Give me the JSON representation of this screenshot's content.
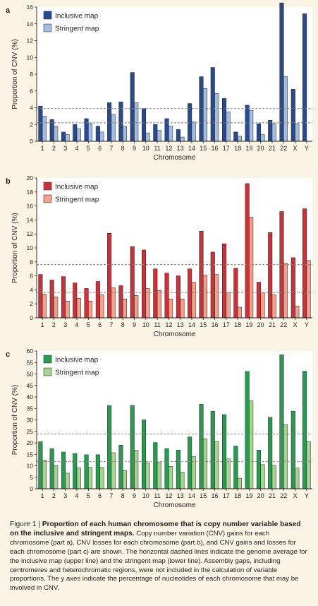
{
  "chart_data": [
    {
      "type": "bar",
      "panel_label": "a",
      "ylabel": "Proportion of CNV (%)",
      "xlabel": "Chromosome",
      "ylim": [
        0,
        16
      ],
      "yticks": [
        0,
        2,
        4,
        6,
        8,
        10,
        12,
        14,
        16
      ],
      "categories": [
        "1",
        "2",
        "3",
        "4",
        "5",
        "6",
        "7",
        "8",
        "9",
        "10",
        "11",
        "12",
        "13",
        "14",
        "15",
        "16",
        "17",
        "18",
        "19",
        "20",
        "21",
        "22",
        "X",
        "Y"
      ],
      "series": [
        {
          "name": "Inclusive map",
          "color": "#2a4a8e",
          "values": [
            4.2,
            2.6,
            1.1,
            2.0,
            2.7,
            1.8,
            4.6,
            4.7,
            8.2,
            3.9,
            2.0,
            2.7,
            1.4,
            4.5,
            7.7,
            8.8,
            5.1,
            1.1,
            4.3,
            2.1,
            2.5,
            16.5,
            6.2,
            15.2
          ]
        },
        {
          "name": "Stringent map",
          "color": "#a3bde0",
          "values": [
            3.0,
            1.8,
            0.8,
            1.5,
            2.1,
            1.1,
            3.2,
            1.8,
            4.6,
            1.0,
            1.3,
            1.8,
            0.5,
            2.3,
            6.3,
            5.7,
            3.5,
            0.6,
            3.7,
            0.8,
            2.1,
            7.7,
            2.1,
            0
          ]
        }
      ],
      "reference_lines": [
        3.9,
        2.2
      ],
      "legend": "top-left"
    },
    {
      "type": "bar",
      "panel_label": "b",
      "ylabel": "Proportion of CNV (%)",
      "xlabel": "Chromosome",
      "ylim": [
        0,
        20
      ],
      "yticks": [
        0,
        2,
        4,
        6,
        8,
        10,
        12,
        14,
        16,
        18,
        20
      ],
      "categories": [
        "1",
        "2",
        "3",
        "4",
        "5",
        "6",
        "7",
        "8",
        "9",
        "10",
        "11",
        "12",
        "13",
        "14",
        "15",
        "16",
        "17",
        "18",
        "19",
        "20",
        "21",
        "22",
        "X",
        "Y"
      ],
      "series": [
        {
          "name": "Inclusive map",
          "color": "#c8323a",
          "values": [
            6.2,
            5.4,
            5.9,
            5.0,
            4.2,
            5.2,
            12.1,
            4.6,
            10.2,
            9.7,
            7.0,
            6.4,
            6.0,
            7.0,
            12.4,
            9.4,
            10.6,
            7.1,
            19.2,
            5.1,
            12.2,
            15.2,
            8.6,
            15.6
          ]
        },
        {
          "name": "Stringent map",
          "color": "#f4a08c",
          "values": [
            3.4,
            3.0,
            2.4,
            2.8,
            2.4,
            3.3,
            4.3,
            2.7,
            3.2,
            4.2,
            3.9,
            2.7,
            2.7,
            5.1,
            6.1,
            6.2,
            3.6,
            1.5,
            14.4,
            3.6,
            3.3,
            7.8,
            1.7,
            8.2
          ]
        }
      ],
      "reference_lines": [
        7.6,
        3.6
      ],
      "legend": "top-left"
    },
    {
      "type": "bar",
      "panel_label": "c",
      "ylabel": "Proportion of CNV (%)",
      "xlabel": "Chromosome",
      "ylim": [
        0,
        60
      ],
      "yticks": [
        0,
        5,
        10,
        15,
        20,
        25,
        30,
        35,
        40,
        45,
        50,
        55,
        60
      ],
      "categories": [
        "1",
        "2",
        "3",
        "4",
        "5",
        "6",
        "7",
        "8",
        "9",
        "10",
        "11",
        "12",
        "13",
        "14",
        "15",
        "16",
        "17",
        "18",
        "19",
        "20",
        "21",
        "22",
        "X",
        "Y"
      ],
      "series": [
        {
          "name": "Inclusive map",
          "color": "#2a9a52",
          "values": [
            20.5,
            17.5,
            16.0,
            15.3,
            14.8,
            14.8,
            36.2,
            19.0,
            36.3,
            30.0,
            20.1,
            17.5,
            16.8,
            22.6,
            36.8,
            33.8,
            32.3,
            18.6,
            51.1,
            16.8,
            31.1,
            58.4,
            33.8,
            51.2
          ]
        },
        {
          "name": "Stringent map",
          "color": "#a7d48f",
          "values": [
            12.4,
            10.1,
            6.8,
            9.1,
            9.3,
            9.3,
            15.7,
            7.9,
            16.7,
            11.3,
            11.4,
            9.7,
            7.2,
            14.0,
            21.8,
            20.6,
            13.0,
            4.6,
            38.3,
            10.5,
            10.2,
            28.0,
            9.0,
            20.6
          ]
        }
      ],
      "reference_lines": [
        23.8,
        11.8
      ],
      "legend": "top-left"
    }
  ],
  "caption": {
    "figure_number": "Figure 1 | ",
    "title": "Proportion of each human chromosome that is copy number variable based on the inclusive and stringent maps.",
    "body": " Copy number variation (CNV) gains for each chromosome (part a), CNV losses for each chromosome (part b), and CNV gains and losses for each chromosome (part c) are shown. The horizontal dashed lines indicate the genome average for the inclusive map (upper line) and the stringent map (lower line). Assembly gaps, including centromeres and heterochromatic regions, were not included in the calculation of variable proportions. The y axes indicate the percentage of nucleotides of each chromosome that may be involved in CNV."
  },
  "colors": {
    "background": "#fbf3e4",
    "plot_background": "#ffffff",
    "axis": "#231f20",
    "dashed_line": "#8a7a72"
  }
}
